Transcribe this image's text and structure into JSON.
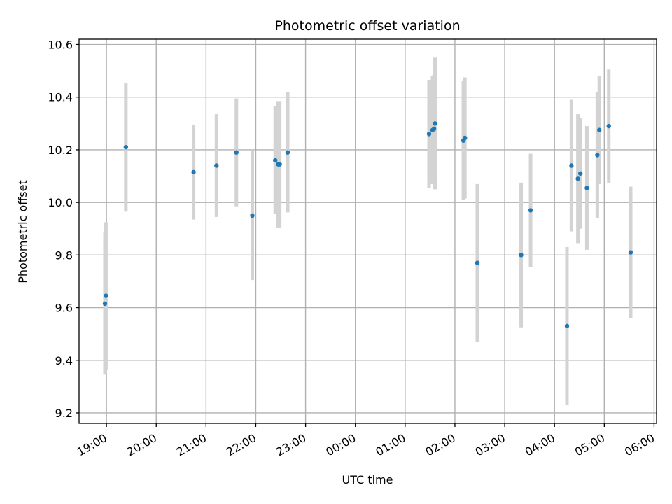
{
  "chart_data": {
    "type": "scatter",
    "title": "Photometric offset variation",
    "xlabel": "UTC time",
    "ylabel": "Photometric offset",
    "x_unit": "hours UTC (values past 24:00 fall on the next day)",
    "xlim": [
      18.45,
      30.05
    ],
    "ylim": [
      9.16,
      10.62
    ],
    "x_ticks": [
      19,
      20,
      21,
      22,
      23,
      24,
      25,
      26,
      27,
      28,
      29,
      30
    ],
    "x_tick_labels": [
      "19:00",
      "20:00",
      "21:00",
      "22:00",
      "23:00",
      "00:00",
      "01:00",
      "02:00",
      "03:00",
      "04:00",
      "05:00",
      "06:00"
    ],
    "y_ticks": [
      9.2,
      9.4,
      9.6,
      9.8,
      10.0,
      10.2,
      10.4,
      10.6
    ],
    "y_tick_labels": [
      "9.2",
      "9.4",
      "9.6",
      "9.8",
      "10.0",
      "10.2",
      "10.4",
      "10.6"
    ],
    "grid": true,
    "point_color": "#1f77b4",
    "errorbar_color": "#d3d3d3",
    "points": [
      {
        "x": 18.97,
        "y": 9.615,
        "err": 0.27
      },
      {
        "x": 18.99,
        "y": 9.645,
        "err": 0.28
      },
      {
        "x": 19.39,
        "y": 10.21,
        "err": 0.245
      },
      {
        "x": 20.75,
        "y": 10.115,
        "err": 0.18
      },
      {
        "x": 21.21,
        "y": 10.14,
        "err": 0.195
      },
      {
        "x": 21.61,
        "y": 10.19,
        "err": 0.205
      },
      {
        "x": 21.93,
        "y": 9.95,
        "err": 0.245
      },
      {
        "x": 22.39,
        "y": 10.16,
        "err": 0.205
      },
      {
        "x": 22.45,
        "y": 10.145,
        "err": 0.24
      },
      {
        "x": 22.48,
        "y": 10.145,
        "err": 0.24
      },
      {
        "x": 22.64,
        "y": 10.19,
        "err": 0.228
      },
      {
        "x": 25.48,
        "y": 10.26,
        "err": 0.205
      },
      {
        "x": 25.55,
        "y": 10.275,
        "err": 0.205
      },
      {
        "x": 25.58,
        "y": 10.28,
        "err": 0.205
      },
      {
        "x": 25.6,
        "y": 10.3,
        "err": 0.25
      },
      {
        "x": 26.17,
        "y": 10.235,
        "err": 0.225
      },
      {
        "x": 26.2,
        "y": 10.245,
        "err": 0.23
      },
      {
        "x": 26.45,
        "y": 9.77,
        "err": 0.3
      },
      {
        "x": 27.33,
        "y": 9.8,
        "err": 0.275
      },
      {
        "x": 27.52,
        "y": 9.97,
        "err": 0.215
      },
      {
        "x": 28.25,
        "y": 9.53,
        "err": 0.3
      },
      {
        "x": 28.34,
        "y": 10.14,
        "err": 0.25
      },
      {
        "x": 28.47,
        "y": 10.09,
        "err": 0.245
      },
      {
        "x": 28.52,
        "y": 10.11,
        "err": 0.21
      },
      {
        "x": 28.65,
        "y": 10.055,
        "err": 0.235
      },
      {
        "x": 28.86,
        "y": 10.18,
        "err": 0.24
      },
      {
        "x": 28.9,
        "y": 10.275,
        "err": 0.205
      },
      {
        "x": 29.09,
        "y": 10.29,
        "err": 0.215
      },
      {
        "x": 29.53,
        "y": 9.81,
        "err": 0.25
      }
    ]
  }
}
